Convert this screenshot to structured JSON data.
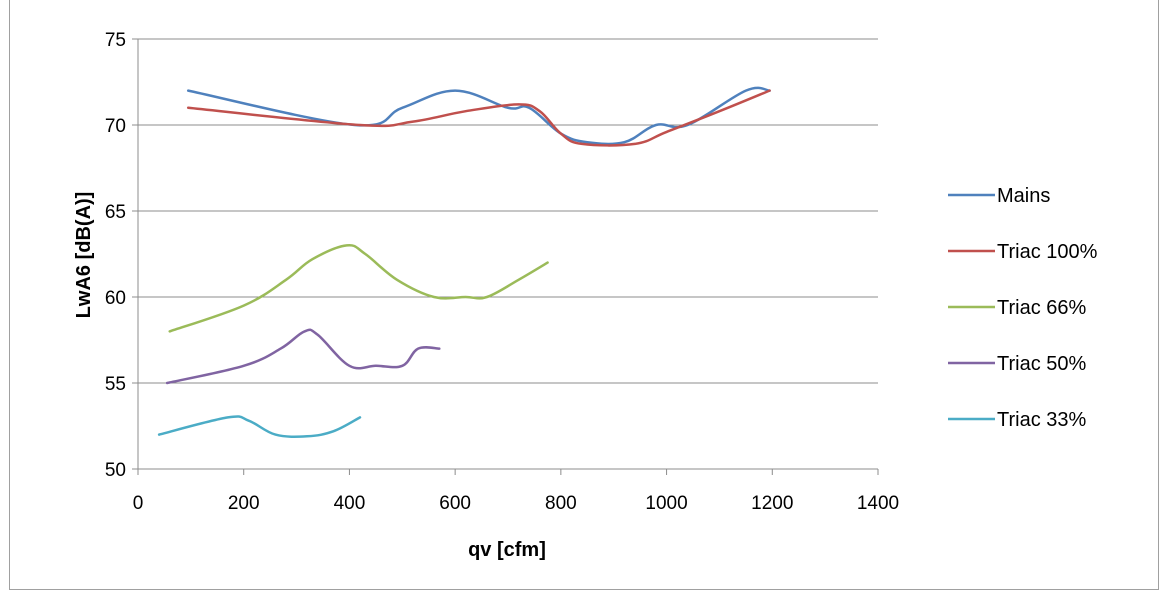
{
  "chart_data": {
    "type": "line",
    "title": "",
    "xlabel": "qv [cfm]",
    "ylabel": "LwA6 [dB(A)]",
    "xlim": [
      0,
      1400
    ],
    "ylim": [
      50,
      75
    ],
    "xticks": [
      0,
      200,
      400,
      600,
      800,
      1000,
      1200,
      1400
    ],
    "yticks": [
      50,
      55,
      60,
      65,
      70,
      75
    ],
    "grid": "horizontal",
    "legend": "right",
    "series": [
      {
        "name": "Mains",
        "color": "#4f81bd",
        "points": [
          [
            95,
            72
          ],
          [
            410,
            70
          ],
          [
            500,
            71
          ],
          [
            600,
            72
          ],
          [
            700,
            71
          ],
          [
            740,
            71
          ],
          [
            800,
            69.5
          ],
          [
            850,
            69
          ],
          [
            920,
            69
          ],
          [
            980,
            70
          ],
          [
            1040,
            70
          ],
          [
            1150,
            72
          ],
          [
            1195,
            72
          ]
        ]
      },
      {
        "name": "Triac 100%",
        "color": "#c0504d",
        "points": [
          [
            95,
            71
          ],
          [
            420,
            70
          ],
          [
            520,
            70.2
          ],
          [
            620,
            70.8
          ],
          [
            720,
            71.2
          ],
          [
            760,
            70.8
          ],
          [
            800,
            69.5
          ],
          [
            840,
            68.9
          ],
          [
            940,
            68.9
          ],
          [
            1000,
            69.6
          ],
          [
            1100,
            70.8
          ],
          [
            1195,
            72
          ]
        ]
      },
      {
        "name": "Triac 66%",
        "color": "#9bbb59",
        "points": [
          [
            60,
            58
          ],
          [
            200,
            59.5
          ],
          [
            280,
            61
          ],
          [
            330,
            62.2
          ],
          [
            395,
            63
          ],
          [
            430,
            62.5
          ],
          [
            490,
            61
          ],
          [
            560,
            60
          ],
          [
            620,
            60
          ],
          [
            660,
            60
          ],
          [
            720,
            61
          ],
          [
            775,
            62
          ]
        ]
      },
      {
        "name": "Triac 50%",
        "color": "#8064a2",
        "points": [
          [
            55,
            55
          ],
          [
            200,
            56
          ],
          [
            270,
            57
          ],
          [
            315,
            58
          ],
          [
            340,
            57.8
          ],
          [
            400,
            56
          ],
          [
            450,
            56
          ],
          [
            500,
            56
          ],
          [
            530,
            57
          ],
          [
            570,
            57
          ]
        ]
      },
      {
        "name": "Triac 33%",
        "color": "#4bacc6",
        "points": [
          [
            40,
            52
          ],
          [
            170,
            53
          ],
          [
            210,
            52.8
          ],
          [
            260,
            52
          ],
          [
            320,
            51.9
          ],
          [
            370,
            52.2
          ],
          [
            420,
            53
          ]
        ]
      }
    ]
  }
}
